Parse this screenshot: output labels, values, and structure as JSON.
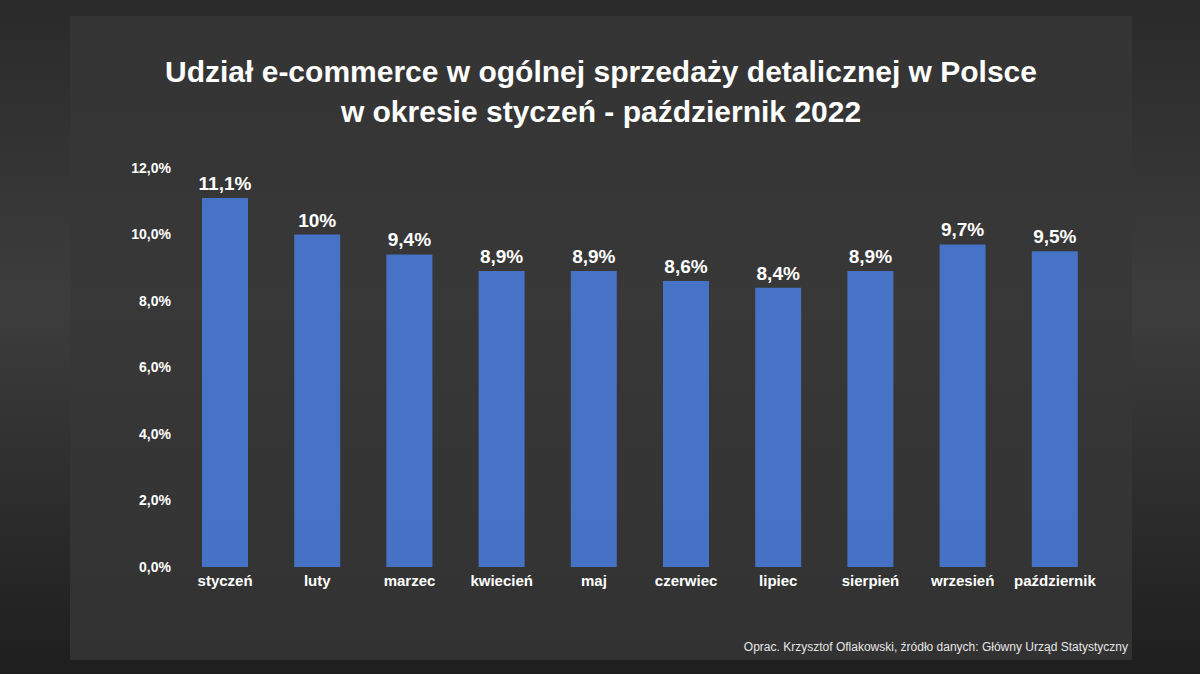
{
  "chart_data": {
    "type": "bar",
    "title": "Udział e-commerce w ogólnej sprzedaży detalicznej w Polsce\nw okresie styczeń - październik 2022",
    "categories": [
      "styczeń",
      "luty",
      "marzec",
      "kwiecień",
      "maj",
      "czerwiec",
      "lipiec",
      "sierpień",
      "wrzesień",
      "październik"
    ],
    "values": [
      11.1,
      10,
      9.4,
      8.9,
      8.9,
      8.6,
      8.4,
      8.9,
      9.7,
      9.5
    ],
    "value_labels": [
      "11,1%",
      "10%",
      "9,4%",
      "8,9%",
      "8,9%",
      "8,6%",
      "8,4%",
      "8,9%",
      "9,7%",
      "9,5%"
    ],
    "data_labels": true,
    "color": "#4a7ee0",
    "ylim": [
      0,
      12
    ],
    "yticks": [
      {
        "value": 0,
        "label": "0,0%"
      },
      {
        "value": 2,
        "label": "2,0%"
      },
      {
        "value": 4,
        "label": "4,0%"
      },
      {
        "value": 6,
        "label": "6,0%"
      },
      {
        "value": 8,
        "label": "8,0%"
      },
      {
        "value": 10,
        "label": "10,0%"
      },
      {
        "value": 12,
        "label": "12,0%"
      }
    ],
    "grid": false,
    "annotations": [
      "Oprac. Krzysztof Oflakowski, źródło danych: Główny Urząd Statystyczny"
    ]
  }
}
